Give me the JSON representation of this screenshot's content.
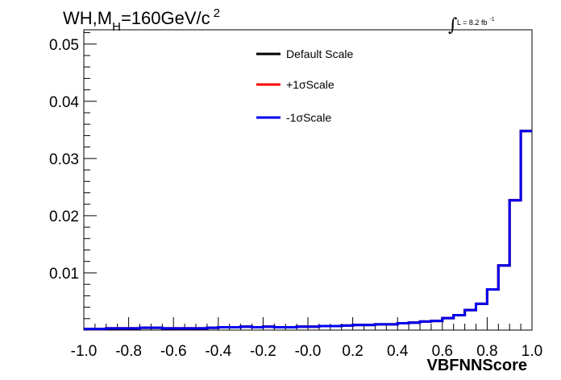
{
  "chart_data": {
    "type": "line",
    "title": "WH,M",
    "title_sub": "H",
    "title_rest": "=160GeV/c",
    "title_sup": "2",
    "lumi_text": "L = 8.2 fb",
    "lumi_sup": "-1",
    "xlabel": "VBFNNScore",
    "ylabel": "",
    "xlim": [
      -1.0,
      1.0
    ],
    "ylim": [
      0,
      0.0525
    ],
    "x_ticks": [
      "-1.0",
      "-0.8",
      "-0.6",
      "-0.4",
      "-0.2",
      "-0.0",
      "0.2",
      "0.4",
      "0.6",
      "0.8",
      "1.0"
    ],
    "y_ticks": [
      "0.01",
      "0.02",
      "0.03",
      "0.04",
      "0.05"
    ],
    "y_tick_values": [
      0.01,
      0.02,
      0.03,
      0.04,
      0.05
    ],
    "grid": false,
    "legend_position": "top-center",
    "bin_edges": [
      -1.0,
      -0.95,
      -0.9,
      -0.85,
      -0.8,
      -0.75,
      -0.7,
      -0.65,
      -0.6,
      -0.55,
      -0.5,
      -0.45,
      -0.4,
      -0.35,
      -0.3,
      -0.25,
      -0.2,
      -0.15,
      -0.1,
      -0.05,
      0.0,
      0.05,
      0.1,
      0.15,
      0.2,
      0.25,
      0.3,
      0.35,
      0.4,
      0.45,
      0.5,
      0.55,
      0.6,
      0.65,
      0.7,
      0.75,
      0.8,
      0.85,
      0.9,
      0.95,
      1.0
    ],
    "series": [
      {
        "name": "Default Scale",
        "color": "#000000",
        "values": [
          0.0002,
          0.0002,
          0.0003,
          0.0003,
          0.0003,
          0.0004,
          0.0004,
          0.0003,
          0.0003,
          0.0003,
          0.0003,
          0.0004,
          0.0005,
          0.0005,
          0.0006,
          0.0005,
          0.0006,
          0.0005,
          0.0005,
          0.0006,
          0.0006,
          0.0007,
          0.0007,
          0.0008,
          0.0009,
          0.0009,
          0.001,
          0.001,
          0.0012,
          0.0013,
          0.0015,
          0.0016,
          0.0021,
          0.0026,
          0.0035,
          0.0046,
          0.0071,
          0.0113,
          0.0227,
          0.0348
        ]
      },
      {
        "name": "+1σScale",
        "color": "#ff0000",
        "values": [
          0.0002,
          0.0002,
          0.0003,
          0.0003,
          0.0003,
          0.0004,
          0.0004,
          0.0003,
          0.0003,
          0.0003,
          0.0003,
          0.0004,
          0.0005,
          0.0005,
          0.0006,
          0.0005,
          0.0006,
          0.0005,
          0.0005,
          0.0006,
          0.0006,
          0.0007,
          0.0007,
          0.0008,
          0.0009,
          0.0009,
          0.001,
          0.001,
          0.0012,
          0.0013,
          0.0015,
          0.0016,
          0.0021,
          0.0026,
          0.0035,
          0.0046,
          0.0071,
          0.0113,
          0.0227,
          0.0348
        ]
      },
      {
        "name": "-1σScale",
        "color": "#0000ee",
        "values": [
          0.0002,
          0.0002,
          0.0003,
          0.0003,
          0.0003,
          0.0004,
          0.0004,
          0.0003,
          0.0003,
          0.0003,
          0.0003,
          0.0004,
          0.0005,
          0.0005,
          0.0006,
          0.0005,
          0.0006,
          0.0005,
          0.0005,
          0.0006,
          0.0006,
          0.0007,
          0.0007,
          0.0008,
          0.0009,
          0.0009,
          0.001,
          0.001,
          0.0012,
          0.0013,
          0.0015,
          0.0016,
          0.0021,
          0.0026,
          0.0035,
          0.0046,
          0.0071,
          0.0113,
          0.0227,
          0.0348
        ]
      }
    ]
  }
}
